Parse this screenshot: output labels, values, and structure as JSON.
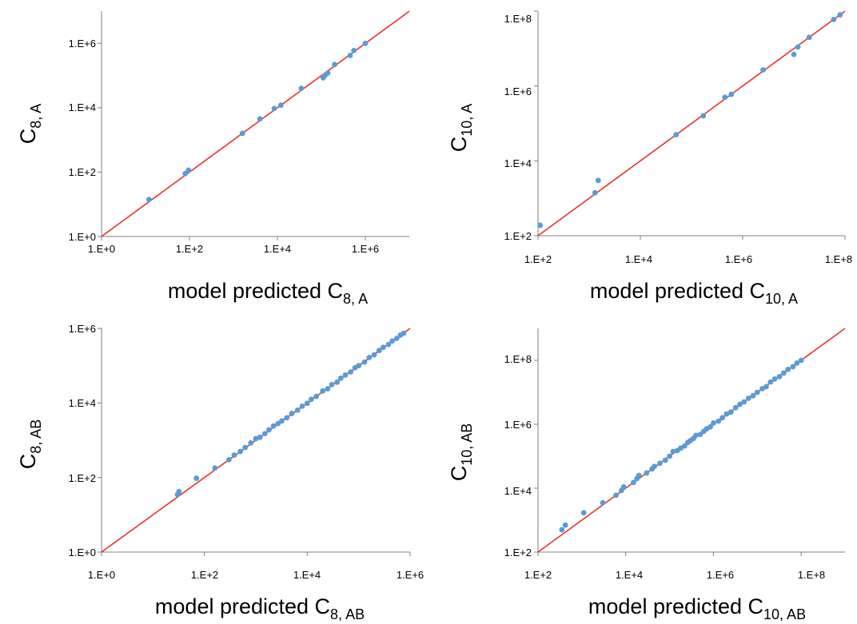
{
  "chart_data": [
    {
      "id": "c8a",
      "type": "scatter",
      "scale": "log",
      "xlim": [
        1,
        10000000
      ],
      "ylim": [
        1,
        10000000
      ],
      "x_ticks": [
        "1.E+0",
        "1.E+2",
        "1.E+4",
        "1.E+6"
      ],
      "y_ticks": [
        "1.E+0",
        "1.E+2",
        "1.E+4",
        "1.E+6"
      ],
      "xlabel": {
        "main": "model predicted C",
        "sub": "8, A"
      },
      "ylabel": {
        "main": "C",
        "sub": "8, A"
      },
      "identity_line": true,
      "colors": {
        "points": "#5b9bd5",
        "line": "#e8322c"
      },
      "points": [
        [
          12,
          14
        ],
        [
          80,
          90
        ],
        [
          95,
          115
        ],
        [
          1600,
          1600
        ],
        [
          4000,
          4500
        ],
        [
          8500,
          9500
        ],
        [
          12000,
          12000
        ],
        [
          35000,
          40000
        ],
        [
          110000,
          85000
        ],
        [
          120000,
          100000
        ],
        [
          140000,
          120000
        ],
        [
          200000,
          220000
        ],
        [
          450000,
          420000
        ],
        [
          550000,
          600000
        ],
        [
          1000000,
          1000000
        ]
      ]
    },
    {
      "id": "c10a",
      "type": "scatter",
      "scale": "log",
      "xlim": [
        100,
        100000000
      ],
      "ylim": [
        100,
        100000000
      ],
      "x_ticks": [
        "1.E+2",
        "1.E+4",
        "1.E+6",
        "1.E+8"
      ],
      "y_ticks": [
        "1.E+2",
        "1.E+4",
        "1.E+6",
        "1.E+8"
      ],
      "xlabel": {
        "main": "model predicted C",
        "sub": "10, A"
      },
      "ylabel": {
        "main": "C",
        "sub": "10, A"
      },
      "identity_line": true,
      "colors": {
        "points": "#5b9bd5",
        "line": "#e8322c"
      },
      "points": [
        [
          110,
          190
        ],
        [
          1300,
          1400
        ],
        [
          1500,
          3000
        ],
        [
          50000,
          50000
        ],
        [
          170000,
          160000
        ],
        [
          450000,
          500000
        ],
        [
          600000,
          600000
        ],
        [
          2500000,
          2700000
        ],
        [
          10000000,
          7000000
        ],
        [
          12000000,
          11000000
        ],
        [
          20000000,
          20000000
        ],
        [
          60000000,
          60000000
        ],
        [
          80000000,
          80000000
        ]
      ]
    },
    {
      "id": "c8ab",
      "type": "scatter",
      "scale": "log",
      "xlim": [
        1,
        1000000
      ],
      "ylim": [
        1,
        1000000
      ],
      "x_ticks": [
        "1.E+0",
        "1.E+2",
        "1.E+4",
        "1.E+6"
      ],
      "y_ticks": [
        "1.E+0",
        "1.E+2",
        "1.E+4",
        "1.E+6"
      ],
      "xlabel": {
        "main": "model predicted C",
        "sub": "8, AB"
      },
      "ylabel": {
        "main": "C",
        "sub": "8, AB"
      },
      "identity_line": true,
      "colors": {
        "points": "#5b9bd5",
        "line": "#e8322c"
      },
      "points": [
        [
          30,
          35
        ],
        [
          32,
          42
        ],
        [
          70,
          95
        ],
        [
          160,
          180
        ],
        [
          300,
          300
        ],
        [
          380,
          400
        ],
        [
          500,
          500
        ],
        [
          620,
          640
        ],
        [
          800,
          850
        ],
        [
          1000,
          1100
        ],
        [
          1200,
          1200
        ],
        [
          1500,
          1500
        ],
        [
          1800,
          1900
        ],
        [
          2200,
          2400
        ],
        [
          2700,
          2800
        ],
        [
          3200,
          3300
        ],
        [
          4000,
          4000
        ],
        [
          5000,
          5200
        ],
        [
          6500,
          6400
        ],
        [
          8000,
          8200
        ],
        [
          10000,
          9800
        ],
        [
          12000,
          12500
        ],
        [
          15000,
          15000
        ],
        [
          20000,
          21000
        ],
        [
          25000,
          24000
        ],
        [
          30000,
          31000
        ],
        [
          38000,
          36000
        ],
        [
          45000,
          46000
        ],
        [
          55000,
          56000
        ],
        [
          70000,
          68000
        ],
        [
          85000,
          88000
        ],
        [
          100000,
          100000
        ],
        [
          130000,
          125000
        ],
        [
          160000,
          165000
        ],
        [
          200000,
          195000
        ],
        [
          250000,
          255000
        ],
        [
          300000,
          310000
        ],
        [
          380000,
          370000
        ],
        [
          450000,
          460000
        ],
        [
          550000,
          540000
        ],
        [
          650000,
          660000
        ],
        [
          750000,
          740000
        ]
      ]
    },
    {
      "id": "c10ab",
      "type": "scatter",
      "scale": "log",
      "xlim": [
        100,
        1000000000
      ],
      "ylim": [
        100,
        1000000000
      ],
      "x_ticks": [
        "1.E+2",
        "1.E+4",
        "1.E+6",
        "1.E+8"
      ],
      "y_ticks": [
        "1.E+2",
        "1.E+4",
        "1.E+6",
        "1.E+8"
      ],
      "xlabel": {
        "main": "model predicted C",
        "sub": "10, AB"
      },
      "ylabel": {
        "main": "C",
        "sub": "10, AB"
      },
      "identity_line": true,
      "colors": {
        "points": "#5b9bd5",
        "line": "#e8322c"
      },
      "points": [
        [
          350,
          500
        ],
        [
          420,
          700
        ],
        [
          1100,
          1700
        ],
        [
          3000,
          3500
        ],
        [
          6000,
          6000
        ],
        [
          8000,
          8500
        ],
        [
          9000,
          11000
        ],
        [
          15000,
          15000
        ],
        [
          18000,
          20000
        ],
        [
          20000,
          25000
        ],
        [
          30000,
          30000
        ],
        [
          40000,
          40000
        ],
        [
          45000,
          48000
        ],
        [
          60000,
          60000
        ],
        [
          80000,
          75000
        ],
        [
          100000,
          100000
        ],
        [
          120000,
          140000
        ],
        [
          150000,
          150000
        ],
        [
          180000,
          180000
        ],
        [
          220000,
          210000
        ],
        [
          260000,
          270000
        ],
        [
          300000,
          310000
        ],
        [
          350000,
          360000
        ],
        [
          400000,
          450000
        ],
        [
          500000,
          480000
        ],
        [
          600000,
          600000
        ],
        [
          700000,
          720000
        ],
        [
          850000,
          830000
        ],
        [
          1000000,
          1100000
        ],
        [
          1300000,
          1250000
        ],
        [
          1600000,
          1600000
        ],
        [
          2000000,
          2100000
        ],
        [
          2500000,
          2400000
        ],
        [
          3200000,
          3300000
        ],
        [
          4000000,
          4200000
        ],
        [
          5000000,
          5000000
        ],
        [
          6300000,
          6500000
        ],
        [
          8000000,
          7800000
        ],
        [
          10000000,
          10000000
        ],
        [
          13000000,
          13000000
        ],
        [
          16000000,
          15000000
        ],
        [
          20000000,
          21000000
        ],
        [
          25000000,
          26000000
        ],
        [
          32000000,
          31000000
        ],
        [
          40000000,
          40000000
        ],
        [
          50000000,
          52000000
        ],
        [
          65000000,
          63000000
        ],
        [
          80000000,
          82000000
        ],
        [
          100000000,
          100000000
        ]
      ]
    }
  ]
}
